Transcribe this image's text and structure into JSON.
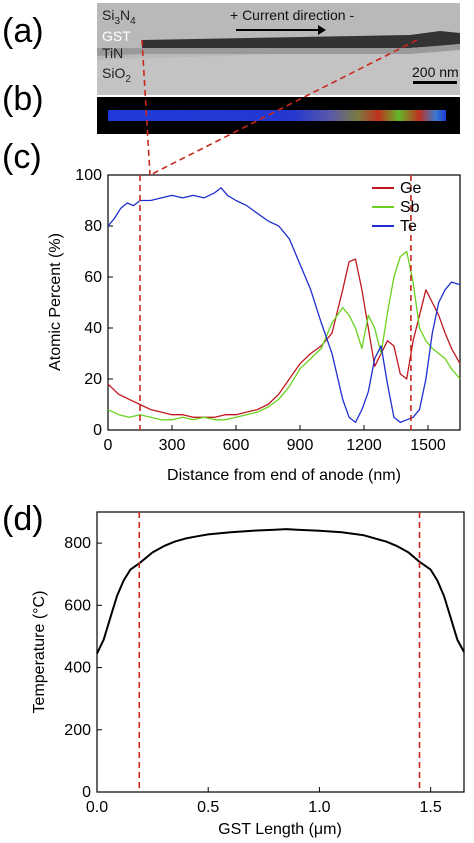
{
  "panels": {
    "a": "(a)",
    "b": "(b)",
    "c": "(c)",
    "d": "(d)"
  },
  "tem": {
    "layer_si3n4": "Si",
    "layer_si3n4_sub3": "3",
    "layer_si3n4_n": "N",
    "layer_si3n4_sub4": "4",
    "layer_gst": "GST",
    "layer_tin": "TiN",
    "layer_sio2": "SiO",
    "layer_sio2_sub2": "2",
    "current_label": "+ Current direction -",
    "scalebar_label": "200 nm"
  },
  "colors": {
    "ge": "#c0181f",
    "sb": "#6ad21f",
    "te": "#1f2fd0",
    "marker": "#c8281c",
    "temp": "#000000",
    "tem_bg": "#b9b9b9",
    "eds_bg": "#000000"
  },
  "chart_data": [
    {
      "type": "line",
      "panel": "c",
      "xlabel": "Distance from end of anode (nm)",
      "ylabel": "Atomic Percent (%)",
      "xlim": [
        0,
        1650
      ],
      "ylim": [
        0,
        100
      ],
      "xticks": [
        "0",
        "300",
        "600",
        "900",
        "1200",
        "1500"
      ],
      "yticks": [
        "0",
        "20",
        "40",
        "60",
        "80",
        "100"
      ],
      "legend_position": "top-right",
      "markers_x": [
        150,
        1420
      ],
      "series": [
        {
          "name": "Ge",
          "color": "#c0181f",
          "x": [
            0,
            50,
            100,
            150,
            200,
            250,
            300,
            350,
            400,
            450,
            500,
            550,
            600,
            650,
            700,
            750,
            800,
            850,
            900,
            950,
            1000,
            1050,
            1100,
            1130,
            1160,
            1190,
            1220,
            1250,
            1280,
            1310,
            1340,
            1370,
            1400,
            1430,
            1460,
            1490,
            1520,
            1550,
            1580,
            1610,
            1650
          ],
          "y": [
            18,
            14,
            12,
            10,
            8,
            7,
            6,
            6,
            5,
            5,
            5,
            6,
            6,
            7,
            8,
            10,
            14,
            20,
            26,
            30,
            33,
            38,
            55,
            66,
            67,
            55,
            40,
            25,
            30,
            35,
            33,
            22,
            20,
            35,
            45,
            55,
            50,
            45,
            38,
            32,
            26
          ]
        },
        {
          "name": "Sb",
          "color": "#6ad21f",
          "x": [
            0,
            50,
            100,
            150,
            200,
            250,
            300,
            350,
            400,
            450,
            500,
            550,
            600,
            650,
            700,
            750,
            800,
            850,
            900,
            950,
            1000,
            1050,
            1100,
            1130,
            1160,
            1190,
            1220,
            1250,
            1280,
            1310,
            1340,
            1370,
            1400,
            1430,
            1460,
            1490,
            1520,
            1550,
            1580,
            1610,
            1650
          ],
          "y": [
            8,
            6,
            5,
            6,
            5,
            4,
            4,
            5,
            4,
            5,
            4,
            4,
            5,
            6,
            7,
            9,
            12,
            17,
            24,
            28,
            32,
            42,
            48,
            45,
            40,
            32,
            45,
            40,
            30,
            46,
            60,
            68,
            70,
            58,
            40,
            35,
            32,
            30,
            28,
            24,
            20
          ]
        },
        {
          "name": "Te",
          "color": "#1f2fd0",
          "x": [
            0,
            30,
            60,
            90,
            120,
            150,
            200,
            250,
            300,
            350,
            400,
            450,
            500,
            530,
            560,
            600,
            650,
            700,
            750,
            800,
            850,
            900,
            950,
            1000,
            1050,
            1100,
            1130,
            1160,
            1190,
            1220,
            1250,
            1280,
            1310,
            1340,
            1370,
            1400,
            1430,
            1460,
            1490,
            1520,
            1550,
            1580,
            1610,
            1650
          ],
          "y": [
            80,
            83,
            87,
            89,
            88,
            90,
            90,
            91,
            92,
            91,
            92,
            91,
            93,
            95,
            92,
            90,
            88,
            85,
            82,
            80,
            75,
            65,
            55,
            42,
            30,
            12,
            5,
            3,
            8,
            15,
            28,
            33,
            18,
            5,
            3,
            4,
            5,
            8,
            20,
            38,
            50,
            55,
            58,
            57
          ]
        }
      ]
    },
    {
      "type": "line",
      "panel": "d",
      "xlabel": "GST Length (μm)",
      "ylabel": "Temperature (°C)",
      "xlim": [
        0,
        1.65
      ],
      "ylim": [
        0,
        900
      ],
      "xticks": [
        "0.0",
        "0.5",
        "1.0",
        "1.5"
      ],
      "yticks": [
        "0",
        "200",
        "400",
        "600",
        "800"
      ],
      "markers_x": [
        0.19,
        1.45
      ],
      "series": [
        {
          "name": "",
          "color": "#000000",
          "x": [
            0,
            0.03,
            0.06,
            0.09,
            0.12,
            0.15,
            0.19,
            0.25,
            0.3,
            0.35,
            0.4,
            0.45,
            0.5,
            0.6,
            0.7,
            0.8,
            0.85,
            0.9,
            1.0,
            1.1,
            1.2,
            1.3,
            1.35,
            1.4,
            1.45,
            1.5,
            1.53,
            1.56,
            1.59,
            1.62,
            1.65
          ],
          "y": [
            445,
            490,
            560,
            630,
            680,
            715,
            735,
            770,
            790,
            805,
            815,
            822,
            828,
            835,
            840,
            843,
            845,
            843,
            840,
            835,
            825,
            805,
            790,
            770,
            740,
            715,
            680,
            630,
            560,
            490,
            450
          ]
        }
      ]
    }
  ]
}
